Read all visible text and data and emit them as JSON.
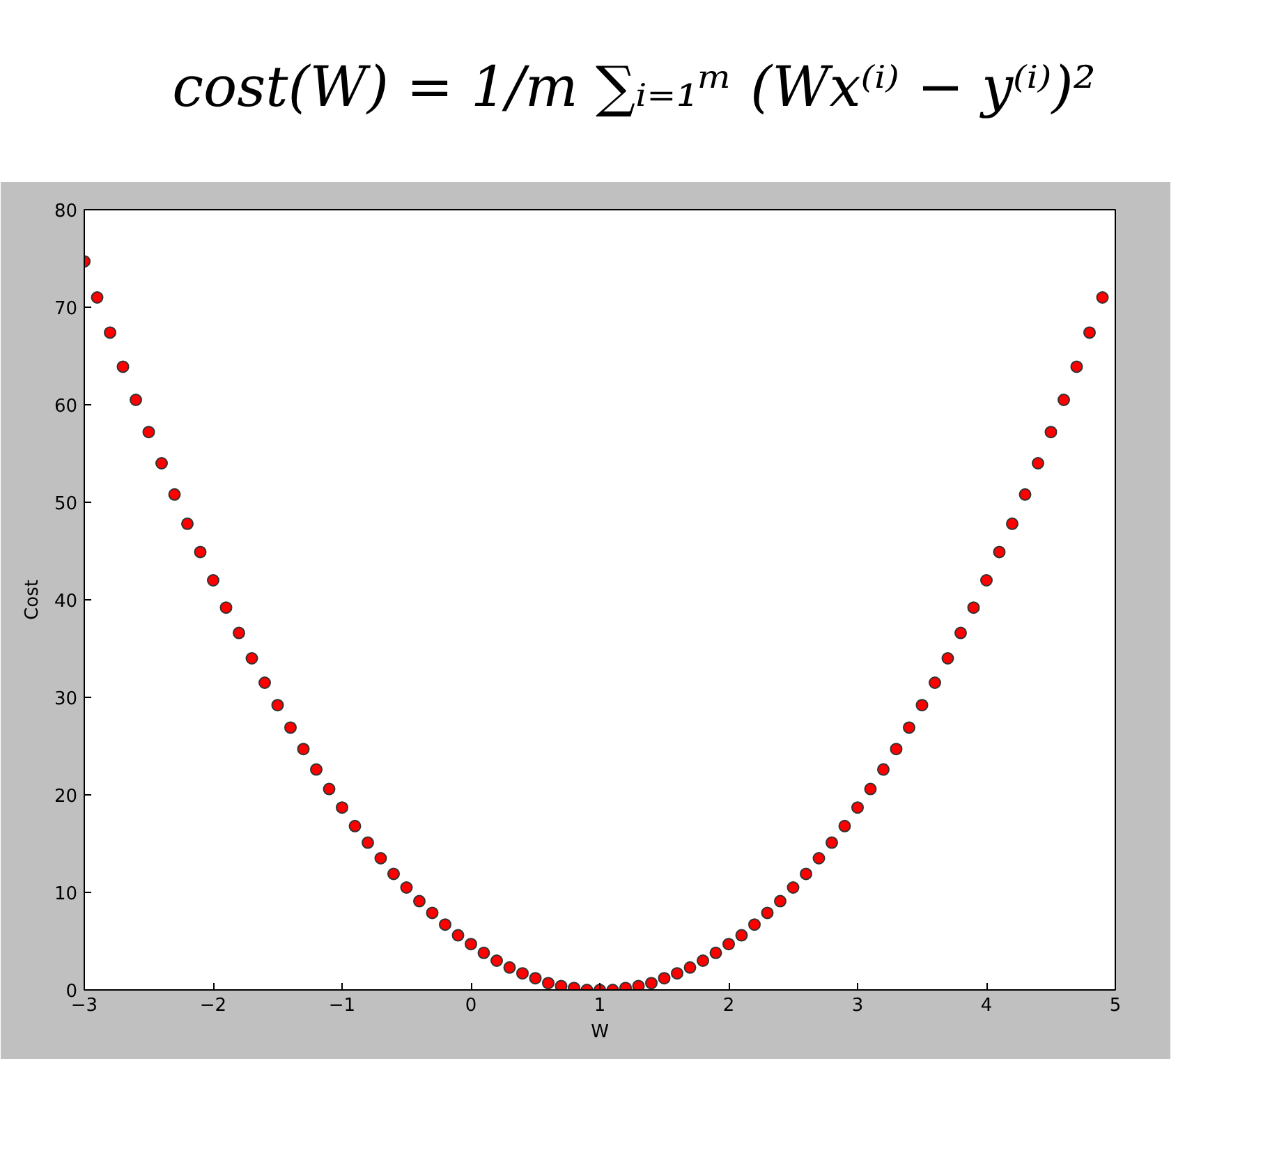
{
  "chart_data": {
    "type": "scatter",
    "title": "cost(W) = 1/m ∑ᵢ₌₁ᵐ (Wx⁽ⁱ⁾ − y⁽ⁱ⁾)²",
    "xlabel": "W",
    "ylabel": "Cost",
    "x": [
      -3.0,
      -2.9,
      -2.8,
      -2.7,
      -2.6,
      -2.5,
      -2.4,
      -2.3,
      -2.2,
      -2.1,
      -2.0,
      -1.9,
      -1.8,
      -1.7,
      -1.6,
      -1.5,
      -1.4,
      -1.3,
      -1.2,
      -1.1,
      -1.0,
      -0.9,
      -0.8,
      -0.7,
      -0.6,
      -0.5,
      -0.4,
      -0.3,
      -0.2,
      -0.1,
      0.0,
      0.1,
      0.2,
      0.3,
      0.4,
      0.5,
      0.6,
      0.7,
      0.8,
      0.9,
      1.0,
      1.1,
      1.2,
      1.3,
      1.4,
      1.5,
      1.6,
      1.7,
      1.8,
      1.9,
      2.0,
      2.1,
      2.2,
      2.3,
      2.4,
      2.5,
      2.6,
      2.7,
      2.8,
      2.9,
      3.0,
      3.1,
      3.2,
      3.3,
      3.4,
      3.5,
      3.6,
      3.7,
      3.8,
      3.9,
      4.0,
      4.1,
      4.2,
      4.3,
      4.4,
      4.5,
      4.6,
      4.7,
      4.8,
      4.9
    ],
    "series": [
      {
        "color": "#ff0000",
        "values": [
          74.7,
          71.0,
          67.4,
          63.9,
          60.5,
          57.2,
          54.0,
          50.8,
          47.8,
          44.9,
          42.0,
          39.2,
          36.6,
          34.0,
          31.5,
          29.2,
          26.9,
          24.7,
          22.6,
          20.6,
          18.7,
          16.8,
          15.1,
          13.5,
          11.9,
          10.5,
          9.1,
          7.9,
          6.7,
          5.6,
          4.7,
          3.8,
          3.0,
          2.3,
          1.7,
          1.2,
          0.7,
          0.4,
          0.2,
          0.0,
          0.0,
          0.0,
          0.2,
          0.4,
          0.7,
          1.2,
          1.7,
          2.3,
          3.0,
          3.8,
          4.7,
          5.6,
          6.7,
          7.9,
          9.1,
          10.5,
          11.9,
          13.5,
          15.1,
          16.8,
          18.7,
          20.6,
          22.6,
          24.7,
          26.9,
          29.2,
          31.5,
          34.0,
          36.6,
          39.2,
          42.0,
          44.9,
          47.8,
          50.8,
          54.0,
          57.2,
          60.5,
          63.9,
          67.4,
          71.0
        ]
      }
    ],
    "xlim": [
      -3,
      5
    ],
    "ylim": [
      0,
      80
    ],
    "xticks": [
      {
        "value": -3,
        "label": "−3"
      },
      {
        "value": -2,
        "label": "−2"
      },
      {
        "value": -1,
        "label": "−1"
      },
      0,
      1,
      2,
      3,
      4,
      5
    ],
    "yticks": [
      0,
      10,
      20,
      30,
      40,
      50,
      60,
      70,
      80
    ],
    "grid": false,
    "marker": "circle"
  }
}
